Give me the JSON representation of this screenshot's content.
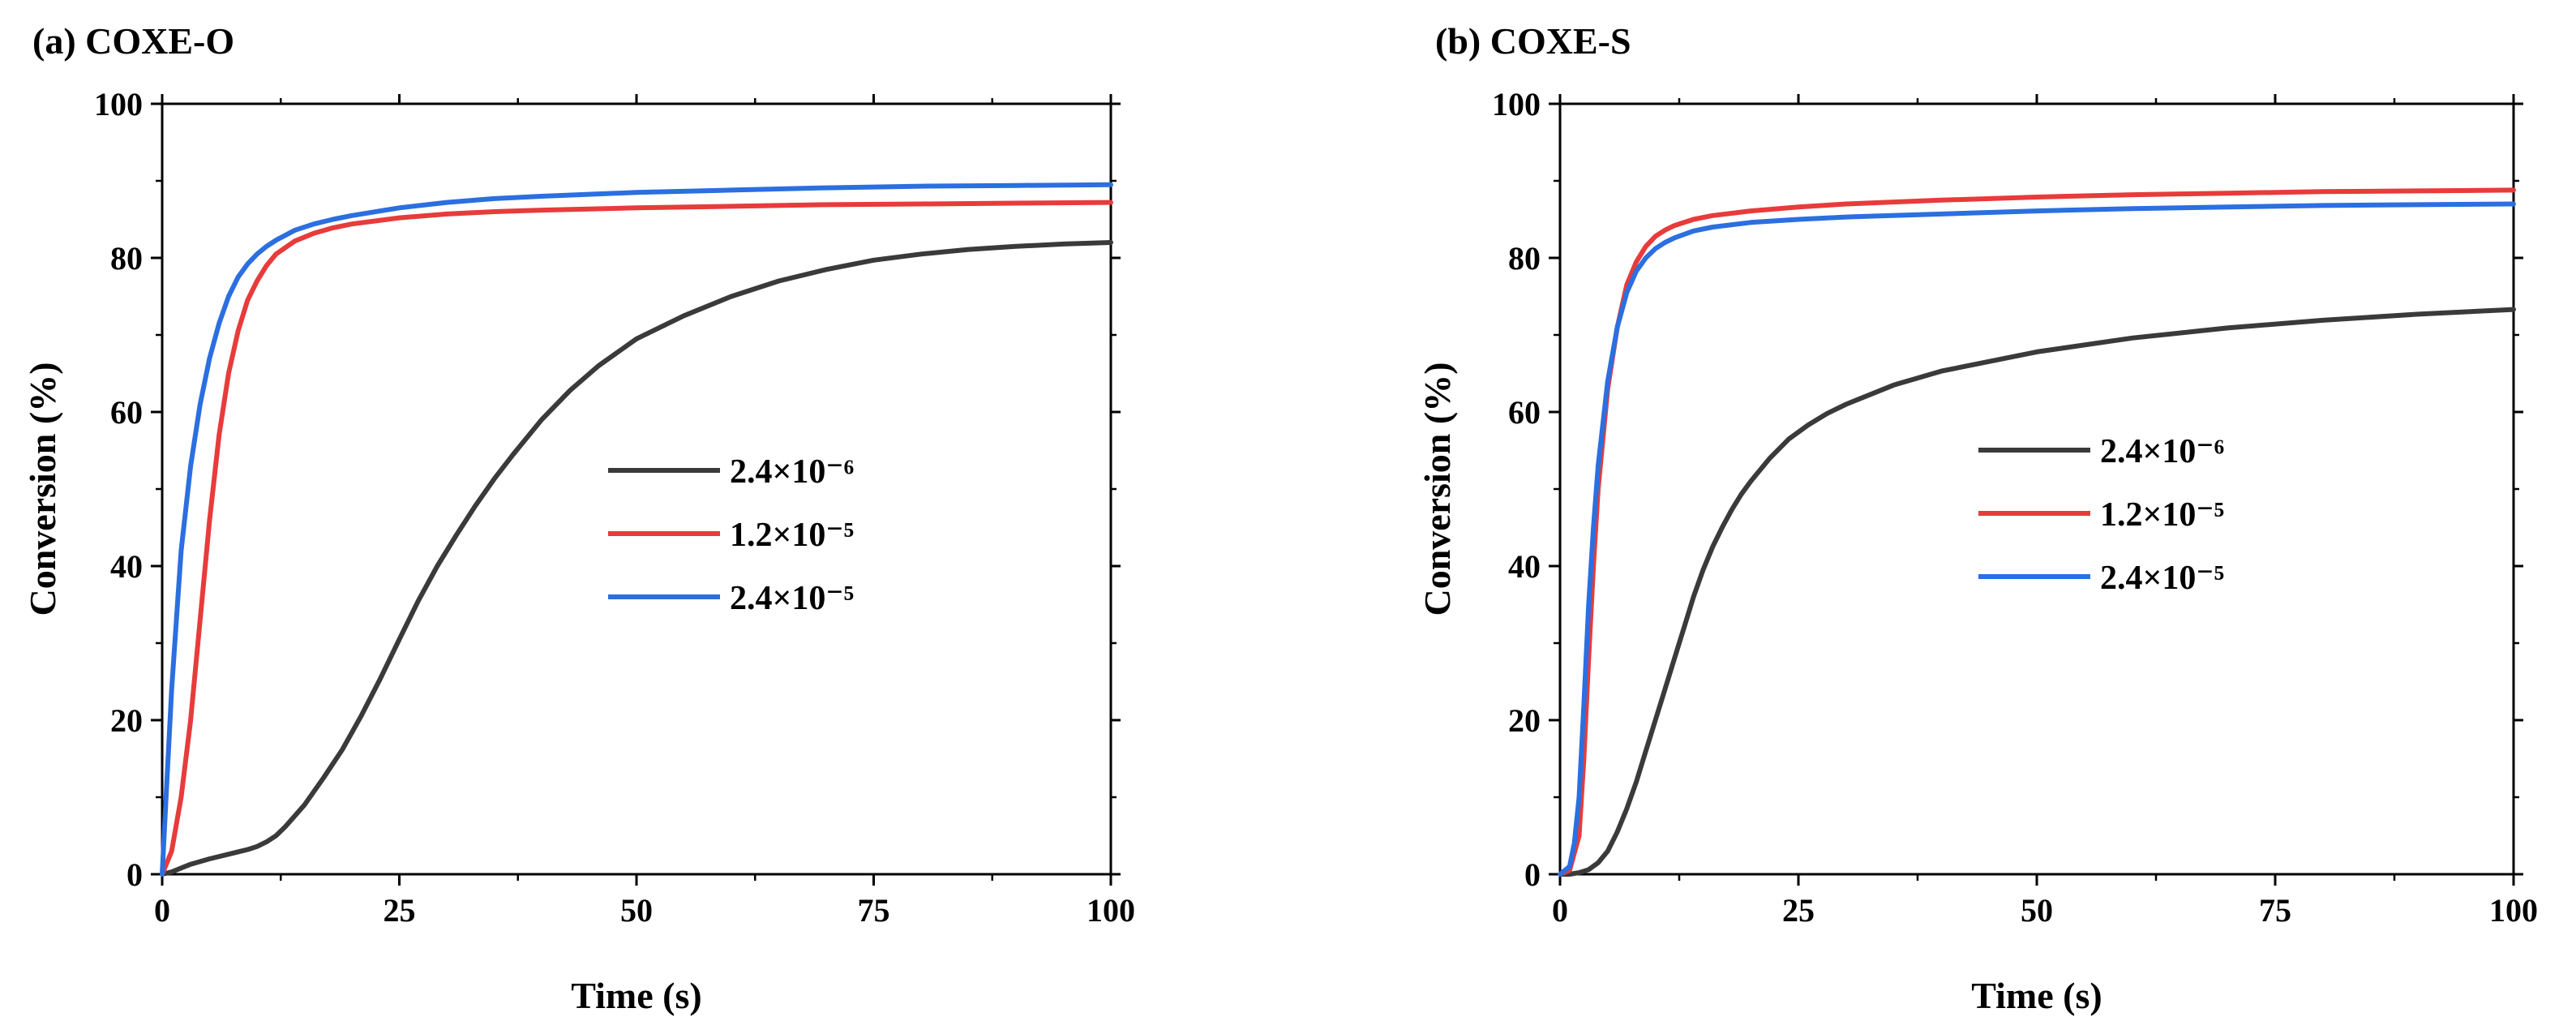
{
  "chart_data": [
    {
      "type": "line",
      "title": "(a) COXE-O",
      "xlabel": "Time (s)",
      "ylabel": "Conversion (%)",
      "xlim": [
        0,
        100
      ],
      "ylim": [
        0,
        100
      ],
      "xticks": [
        0,
        25,
        50,
        75,
        100
      ],
      "yticks": [
        0,
        20,
        40,
        60,
        80,
        100
      ],
      "xtick_labels": [
        "0",
        "25",
        "50",
        "75",
        "100"
      ],
      "ytick_labels": [
        "0",
        "20",
        "40",
        "60",
        "80",
        "100"
      ],
      "grid": false,
      "legend_position": "center-right",
      "series": [
        {
          "name": "2.4×10⁻⁶",
          "color": "#3a3a3a",
          "x": [
            0,
            1,
            2,
            3,
            5,
            7,
            9,
            10,
            11,
            12,
            13,
            15,
            17,
            19,
            21,
            23,
            25,
            27,
            29,
            31,
            33,
            35,
            37,
            40,
            43,
            46,
            50,
            55,
            60,
            65,
            70,
            75,
            80,
            85,
            90,
            95,
            100
          ],
          "y": [
            0,
            0.3,
            0.8,
            1.3,
            2.0,
            2.6,
            3.2,
            3.6,
            4.2,
            5.0,
            6.2,
            9.0,
            12.5,
            16.2,
            20.6,
            25.4,
            30.5,
            35.5,
            40.0,
            44.0,
            47.8,
            51.3,
            54.5,
            59.0,
            62.8,
            66.0,
            69.5,
            72.5,
            75.0,
            77.0,
            78.5,
            79.7,
            80.5,
            81.1,
            81.5,
            81.8,
            82.0
          ]
        },
        {
          "name": "1.2×10⁻⁵",
          "color": "#e83b3b",
          "x": [
            0,
            1,
            2,
            3,
            4,
            5,
            6,
            7,
            8,
            9,
            10,
            11,
            12,
            14,
            16,
            18,
            20,
            25,
            30,
            35,
            40,
            50,
            60,
            70,
            80,
            90,
            100
          ],
          "y": [
            0,
            3,
            10,
            20,
            33,
            46,
            57,
            65,
            70.5,
            74.5,
            77,
            79,
            80.5,
            82.2,
            83.2,
            83.9,
            84.4,
            85.2,
            85.7,
            86.0,
            86.2,
            86.5,
            86.7,
            86.9,
            87.0,
            87.1,
            87.2
          ]
        },
        {
          "name": "2.4×10⁻⁵",
          "color": "#2b6fe0",
          "x": [
            0,
            0.5,
            1,
            2,
            3,
            4,
            5,
            6,
            7,
            8,
            9,
            10,
            11,
            12,
            14,
            16,
            18,
            20,
            25,
            30,
            35,
            40,
            50,
            60,
            70,
            80,
            90,
            100
          ],
          "y": [
            0,
            12,
            24,
            42,
            53,
            61,
            67,
            71.5,
            75,
            77.5,
            79.2,
            80.5,
            81.5,
            82.3,
            83.6,
            84.4,
            85.0,
            85.5,
            86.5,
            87.2,
            87.7,
            88.0,
            88.5,
            88.8,
            89.1,
            89.3,
            89.4,
            89.5
          ]
        }
      ]
    },
    {
      "type": "line",
      "title": "(b) COXE-S",
      "xlabel": "Time (s)",
      "ylabel": "Conversion (%)",
      "xlim": [
        0,
        100
      ],
      "ylim": [
        0,
        100
      ],
      "xticks": [
        0,
        25,
        50,
        75,
        100
      ],
      "yticks": [
        0,
        20,
        40,
        60,
        80,
        100
      ],
      "xtick_labels": [
        "0",
        "25",
        "50",
        "75",
        "100"
      ],
      "ytick_labels": [
        "0",
        "20",
        "40",
        "60",
        "80",
        "100"
      ],
      "grid": false,
      "legend_position": "center-right",
      "series": [
        {
          "name": "2.4×10⁻⁶",
          "color": "#3a3a3a",
          "x": [
            0,
            1,
            2,
            3,
            4,
            5,
            6,
            7,
            8,
            9,
            10,
            11,
            12,
            13,
            14,
            15,
            16,
            17,
            18,
            19,
            20,
            22,
            24,
            26,
            28,
            30,
            35,
            40,
            50,
            60,
            70,
            80,
            90,
            100
          ],
          "y": [
            0,
            0,
            0.2,
            0.6,
            1.5,
            3,
            5.5,
            8.5,
            12,
            16,
            20,
            24,
            28,
            32,
            36,
            39.5,
            42.5,
            45,
            47.3,
            49.3,
            51,
            54,
            56.5,
            58.3,
            59.8,
            61,
            63.5,
            65.3,
            67.8,
            69.6,
            70.9,
            71.9,
            72.7,
            73.3
          ]
        },
        {
          "name": "1.2×10⁻⁵",
          "color": "#e83b3b",
          "x": [
            0,
            1,
            2,
            2.5,
            3,
            3.5,
            4,
            5,
            6,
            7,
            8,
            9,
            10,
            11,
            12,
            14,
            16,
            20,
            25,
            30,
            40,
            50,
            60,
            70,
            80,
            90,
            100
          ],
          "y": [
            0,
            0.5,
            5,
            15,
            28,
            40,
            50,
            63,
            71,
            76.5,
            79.5,
            81.5,
            82.8,
            83.6,
            84.2,
            85,
            85.5,
            86.1,
            86.6,
            87,
            87.5,
            87.9,
            88.2,
            88.4,
            88.6,
            88.7,
            88.8
          ]
        },
        {
          "name": "2.4×10⁻⁵",
          "color": "#2b6fe0",
          "x": [
            0,
            1,
            1.5,
            2,
            2.5,
            3,
            3.5,
            4,
            5,
            6,
            7,
            8,
            9,
            10,
            11,
            12,
            14,
            16,
            20,
            25,
            30,
            40,
            50,
            60,
            70,
            80,
            90,
            100
          ],
          "y": [
            0,
            1,
            4,
            10,
            22,
            35,
            45,
            53,
            64,
            71,
            75.5,
            78.3,
            80,
            81.2,
            82,
            82.6,
            83.5,
            84,
            84.6,
            85,
            85.3,
            85.7,
            86.1,
            86.4,
            86.6,
            86.8,
            86.9,
            87
          ]
        }
      ]
    }
  ]
}
